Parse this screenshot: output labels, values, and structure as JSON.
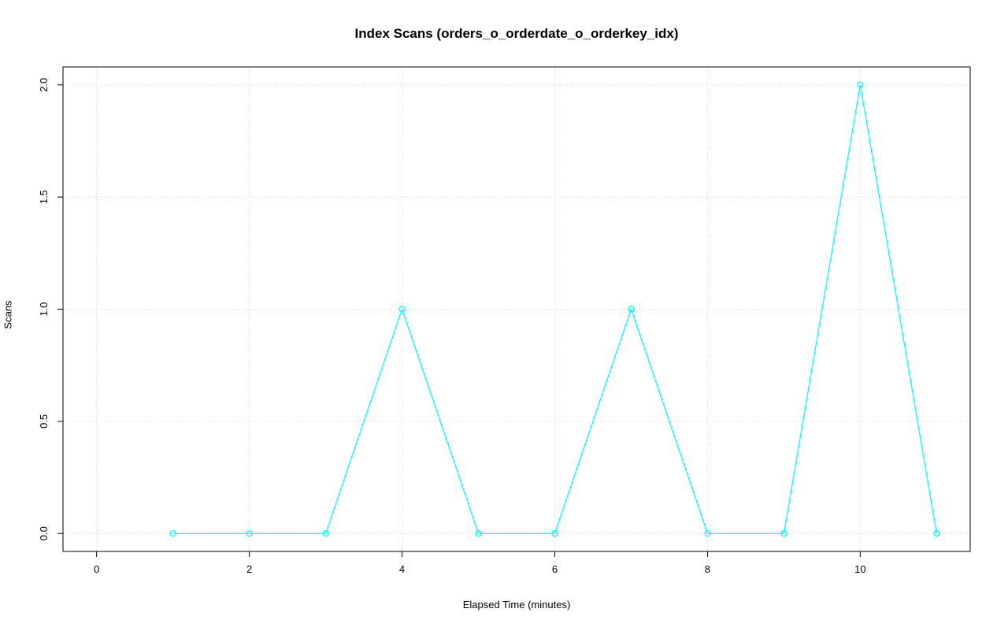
{
  "chart_data": {
    "type": "line",
    "title": "Index Scans (orders_o_orderdate_o_orderkey_idx)",
    "xlabel": "Elapsed Time (minutes)",
    "ylabel": "Scans",
    "series": [
      {
        "name": "index-scans",
        "x": [
          1,
          2,
          3,
          4,
          5,
          6,
          7,
          8,
          9,
          10,
          11
        ],
        "y": [
          0,
          0,
          0,
          1,
          0,
          0,
          1,
          0,
          0,
          2,
          0
        ]
      }
    ],
    "x_ticks": [
      "0",
      "2",
      "4",
      "6",
      "8",
      "10"
    ],
    "y_ticks": [
      "0.0",
      "0.5",
      "1.0",
      "1.5",
      "2.0"
    ],
    "xlim": [
      -0.44,
      11.44
    ],
    "ylim": [
      -0.08,
      2.08
    ],
    "grid": true,
    "grid_style": "dotted",
    "legend_position": "none",
    "colors": {
      "line": "#00ffff",
      "marker": "#00ffff",
      "grid": "#d3d3d3",
      "box": "#000000",
      "background": "#ffffff",
      "text": "#000000"
    },
    "marker": "open-circle"
  }
}
